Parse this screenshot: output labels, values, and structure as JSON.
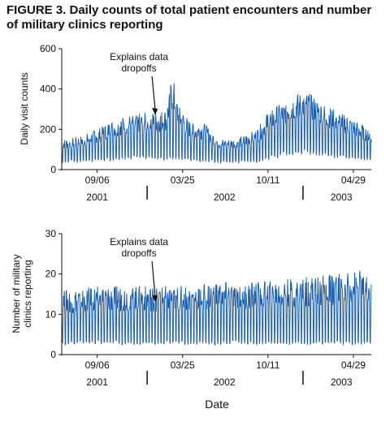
{
  "figure": {
    "title": "FIGURE 3. Daily counts of total patient encounters and number of military clinics reporting",
    "xlabel": "Date"
  },
  "colors": {
    "series": "#1f5fa8",
    "axis": "#111111",
    "background": "#ffffff"
  },
  "chart_data": [
    {
      "type": "line",
      "ylabel": "Daily visit counts",
      "ylim": [
        0,
        600
      ],
      "yticks": [
        0,
        200,
        400,
        600
      ],
      "x_range": [
        "2001-06-15",
        "2003-06-10"
      ],
      "date_ticks": [
        {
          "date": "2001-09-06",
          "label": "09/06"
        },
        {
          "date": "2002-03-25",
          "label": "03/25"
        },
        {
          "date": "2002-10-11",
          "label": "10/11"
        },
        {
          "date": "2003-04-29",
          "label": "04/29"
        }
      ],
      "year_labels": [
        {
          "label": "2001",
          "date": "2001-09-06"
        },
        {
          "label": "2002",
          "date": "2002-07-01"
        },
        {
          "label": "2003",
          "date": "2003-04-01"
        }
      ],
      "year_boundaries": [
        "2002-01-01",
        "2003-01-01"
      ],
      "annotation": {
        "text_lines": [
          "Explains data",
          "dropoffs"
        ],
        "date": "2002-01-20",
        "value": 270
      },
      "series": [
        {
          "x": [
            "2001-06-15",
            "2001-07-15",
            "2001-08-15",
            "2001-09-15",
            "2001-10-15",
            "2001-11-15",
            "2001-12-15",
            "2002-01-15",
            "2002-02-15",
            "2002-03-01",
            "2002-03-15",
            "2002-04-15",
            "2002-05-15",
            "2002-06-15",
            "2002-07-15",
            "2002-08-15",
            "2002-09-15",
            "2002-10-15",
            "2002-11-15",
            "2002-12-15",
            "2003-01-15",
            "2003-02-15",
            "2003-03-15",
            "2003-04-15",
            "2003-05-15",
            "2003-06-10"
          ],
          "weekday_high": [
            150,
            160,
            180,
            210,
            250,
            270,
            280,
            285,
            300,
            480,
            320,
            230,
            230,
            160,
            150,
            170,
            200,
            300,
            330,
            380,
            380,
            330,
            300,
            270,
            230,
            200
          ],
          "weekend_low": [
            40,
            40,
            45,
            50,
            55,
            60,
            60,
            60,
            60,
            60,
            60,
            50,
            50,
            40,
            40,
            40,
            45,
            60,
            80,
            90,
            90,
            80,
            70,
            60,
            55,
            50
          ]
        }
      ]
    },
    {
      "type": "line",
      "ylabel": "Number of military clinics reporting",
      "ylim": [
        0,
        30
      ],
      "yticks": [
        0,
        10,
        20,
        30
      ],
      "x_range": [
        "2001-06-15",
        "2003-06-10"
      ],
      "date_ticks": [
        {
          "date": "2001-09-06",
          "label": "09/06"
        },
        {
          "date": "2002-03-25",
          "label": "03/25"
        },
        {
          "date": "2002-10-11",
          "label": "10/11"
        },
        {
          "date": "2003-04-29",
          "label": "04/29"
        }
      ],
      "year_labels": [
        {
          "label": "2001",
          "date": "2001-09-06"
        },
        {
          "label": "2002",
          "date": "2002-07-01"
        },
        {
          "label": "2003",
          "date": "2003-04-01"
        }
      ],
      "year_boundaries": [
        "2002-01-01",
        "2003-01-01"
      ],
      "annotation": {
        "text_lines": [
          "Explains data",
          "dropoffs"
        ],
        "date": "2002-01-20",
        "value": 13
      },
      "series": [
        {
          "x": [
            "2001-06-15",
            "2001-09-15",
            "2001-12-15",
            "2002-03-15",
            "2002-06-15",
            "2002-09-15",
            "2002-12-15",
            "2003-03-15",
            "2003-05-15",
            "2003-06-10"
          ],
          "weekday_high": [
            16,
            17,
            17,
            17,
            18,
            18,
            19,
            20,
            21,
            18
          ],
          "weekend_low": [
            3,
            3,
            3,
            3,
            3,
            3,
            3,
            3,
            3,
            3
          ]
        }
      ]
    }
  ]
}
